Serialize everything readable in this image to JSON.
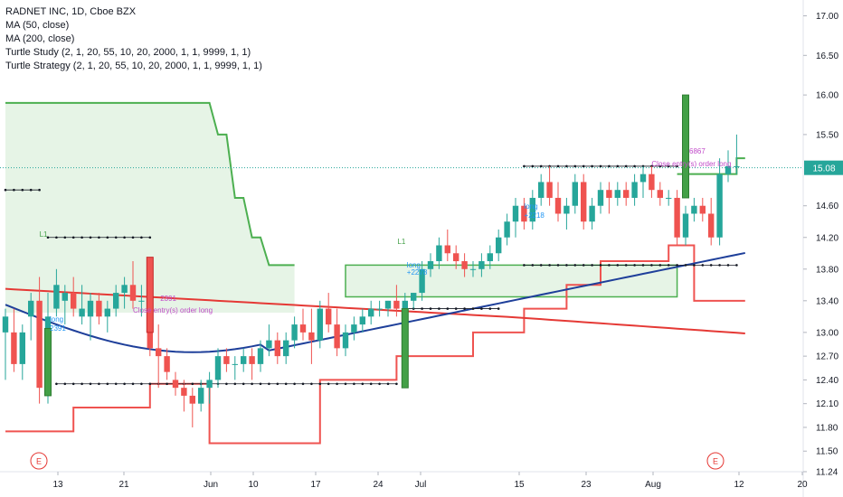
{
  "legend": {
    "title": "RADNET INC, 1D, Cboe BZX",
    "ma50": "MA (50, close)",
    "ma200": "MA (200, close)",
    "study": "Turtle Study (2, 1, 20, 55, 10, 20, 2000, 1, 1, 9999, 1, 1)",
    "strategy": "Turtle Strategy (2, 1, 20, 55, 10, 20, 2000, 1, 1, 9999, 1, 1)"
  },
  "colors": {
    "up": "#26a69a",
    "down": "#ef5350",
    "ma50": "#1e3f9a",
    "ma200": "#e53935",
    "green_channel": "#4caf50",
    "red_channel": "#ef5350",
    "price_line": "#26a69a",
    "signal_label": "#2196f3",
    "close_label": "#c04ac8"
  },
  "chart_data": {
    "type": "candlestick",
    "ylim": [
      11.24,
      17.2
    ],
    "y_ticks": [
      "17.00",
      "16.50",
      "16.00",
      "15.50",
      "15.08",
      "14.60",
      "14.20",
      "13.80",
      "13.40",
      "13.00",
      "12.70",
      "12.40",
      "12.10",
      "11.80",
      "11.50",
      "11.24"
    ],
    "x_ticks": [
      "13",
      "21",
      "Jun",
      "10",
      "17",
      "24",
      "Jul",
      "15",
      "23",
      "Aug",
      "12",
      "20"
    ],
    "last_price": "15.08",
    "candles": [
      {
        "o": 13.0,
        "h": 13.3,
        "l": 12.4,
        "c": 13.2
      },
      {
        "o": 13.0,
        "h": 13.3,
        "l": 12.5,
        "c": 12.6
      },
      {
        "o": 12.6,
        "h": 13.1,
        "l": 12.4,
        "c": 13.0
      },
      {
        "o": 13.2,
        "h": 13.5,
        "l": 12.9,
        "c": 13.4
      },
      {
        "o": 13.4,
        "h": 13.7,
        "l": 12.1,
        "c": 12.3
      },
      {
        "o": 12.5,
        "h": 13.5,
        "l": 12.1,
        "c": 13.2
      },
      {
        "o": 13.3,
        "h": 13.8,
        "l": 13.2,
        "c": 13.6
      },
      {
        "o": 13.4,
        "h": 13.6,
        "l": 13.1,
        "c": 13.5
      },
      {
        "o": 13.5,
        "h": 13.7,
        "l": 13.2,
        "c": 13.3
      },
      {
        "o": 13.2,
        "h": 13.6,
        "l": 13.1,
        "c": 13.3
      },
      {
        "o": 13.2,
        "h": 13.5,
        "l": 12.9,
        "c": 13.4
      },
      {
        "o": 13.4,
        "h": 13.5,
        "l": 13.1,
        "c": 13.2
      },
      {
        "o": 13.2,
        "h": 13.4,
        "l": 13.0,
        "c": 13.3
      },
      {
        "o": 13.3,
        "h": 13.6,
        "l": 13.2,
        "c": 13.5
      },
      {
        "o": 13.5,
        "h": 13.7,
        "l": 13.3,
        "c": 13.6
      },
      {
        "o": 13.6,
        "h": 13.9,
        "l": 13.3,
        "c": 13.4
      },
      {
        "o": 13.4,
        "h": 13.6,
        "l": 13.2,
        "c": 13.4
      },
      {
        "o": 13.4,
        "h": 13.5,
        "l": 12.7,
        "c": 12.8
      },
      {
        "o": 12.8,
        "h": 13.1,
        "l": 12.3,
        "c": 12.7
      },
      {
        "o": 12.7,
        "h": 12.8,
        "l": 12.4,
        "c": 12.5
      },
      {
        "o": 12.4,
        "h": 12.5,
        "l": 12.2,
        "c": 12.3
      },
      {
        "o": 12.3,
        "h": 12.4,
        "l": 12.0,
        "c": 12.2
      },
      {
        "o": 12.2,
        "h": 12.3,
        "l": 11.8,
        "c": 12.1
      },
      {
        "o": 12.1,
        "h": 12.4,
        "l": 12.0,
        "c": 12.3
      },
      {
        "o": 12.3,
        "h": 12.5,
        "l": 12.1,
        "c": 12.4
      },
      {
        "o": 12.4,
        "h": 12.8,
        "l": 12.3,
        "c": 12.7
      },
      {
        "o": 12.7,
        "h": 12.8,
        "l": 12.5,
        "c": 12.6
      },
      {
        "o": 12.6,
        "h": 12.7,
        "l": 12.4,
        "c": 12.6
      },
      {
        "o": 12.6,
        "h": 12.8,
        "l": 12.5,
        "c": 12.7
      },
      {
        "o": 12.7,
        "h": 12.8,
        "l": 12.4,
        "c": 12.6
      },
      {
        "o": 12.6,
        "h": 12.9,
        "l": 12.5,
        "c": 12.8
      },
      {
        "o": 12.8,
        "h": 13.1,
        "l": 12.7,
        "c": 12.9
      },
      {
        "o": 12.9,
        "h": 13.0,
        "l": 12.6,
        "c": 12.7
      },
      {
        "o": 12.7,
        "h": 13.0,
        "l": 12.6,
        "c": 12.9
      },
      {
        "o": 12.9,
        "h": 13.2,
        "l": 12.8,
        "c": 13.1
      },
      {
        "o": 13.1,
        "h": 13.3,
        "l": 12.9,
        "c": 13.0
      },
      {
        "o": 13.0,
        "h": 13.3,
        "l": 12.6,
        "c": 12.9
      },
      {
        "o": 12.9,
        "h": 13.4,
        "l": 12.8,
        "c": 13.3
      },
      {
        "o": 13.3,
        "h": 13.5,
        "l": 13.0,
        "c": 13.1
      },
      {
        "o": 13.1,
        "h": 13.3,
        "l": 12.7,
        "c": 12.8
      },
      {
        "o": 12.8,
        "h": 13.1,
        "l": 12.7,
        "c": 13.0
      },
      {
        "o": 13.0,
        "h": 13.2,
        "l": 12.9,
        "c": 13.1
      },
      {
        "o": 13.1,
        "h": 13.3,
        "l": 13.0,
        "c": 13.2
      },
      {
        "o": 13.2,
        "h": 13.4,
        "l": 13.1,
        "c": 13.3
      },
      {
        "o": 13.3,
        "h": 13.4,
        "l": 13.2,
        "c": 13.3
      },
      {
        "o": 13.3,
        "h": 13.4,
        "l": 13.2,
        "c": 13.4
      },
      {
        "o": 13.4,
        "h": 13.6,
        "l": 13.2,
        "c": 13.3
      },
      {
        "o": 13.3,
        "h": 13.5,
        "l": 13.2,
        "c": 13.4
      },
      {
        "o": 13.4,
        "h": 13.5,
        "l": 13.3,
        "c": 13.5
      },
      {
        "o": 13.5,
        "h": 13.9,
        "l": 13.4,
        "c": 13.8
      },
      {
        "o": 13.8,
        "h": 14.0,
        "l": 13.7,
        "c": 13.9
      },
      {
        "o": 13.9,
        "h": 14.2,
        "l": 13.8,
        "c": 14.1
      },
      {
        "o": 14.1,
        "h": 14.3,
        "l": 13.9,
        "c": 14.0
      },
      {
        "o": 14.0,
        "h": 14.1,
        "l": 13.8,
        "c": 13.9
      },
      {
        "o": 13.9,
        "h": 14.0,
        "l": 13.7,
        "c": 13.8
      },
      {
        "o": 13.8,
        "h": 13.9,
        "l": 13.7,
        "c": 13.8
      },
      {
        "o": 13.8,
        "h": 14.0,
        "l": 13.7,
        "c": 13.9
      },
      {
        "o": 13.9,
        "h": 14.1,
        "l": 13.8,
        "c": 14.0
      },
      {
        "o": 14.0,
        "h": 14.3,
        "l": 13.9,
        "c": 14.2
      },
      {
        "o": 14.2,
        "h": 14.5,
        "l": 14.1,
        "c": 14.4
      },
      {
        "o": 14.4,
        "h": 14.7,
        "l": 14.2,
        "c": 14.6
      },
      {
        "o": 14.6,
        "h": 14.7,
        "l": 14.3,
        "c": 14.4
      },
      {
        "o": 14.4,
        "h": 14.8,
        "l": 14.3,
        "c": 14.7
      },
      {
        "o": 14.7,
        "h": 15.0,
        "l": 14.6,
        "c": 14.9
      },
      {
        "o": 14.9,
        "h": 15.1,
        "l": 14.6,
        "c": 14.7
      },
      {
        "o": 14.7,
        "h": 14.9,
        "l": 14.4,
        "c": 14.5
      },
      {
        "o": 14.5,
        "h": 14.7,
        "l": 14.3,
        "c": 14.6
      },
      {
        "o": 14.6,
        "h": 15.0,
        "l": 14.5,
        "c": 14.9
      },
      {
        "o": 14.9,
        "h": 15.0,
        "l": 14.3,
        "c": 14.4
      },
      {
        "o": 14.4,
        "h": 14.7,
        "l": 14.3,
        "c": 14.6
      },
      {
        "o": 14.6,
        "h": 14.9,
        "l": 14.5,
        "c": 14.8
      },
      {
        "o": 14.8,
        "h": 14.9,
        "l": 14.5,
        "c": 14.7
      },
      {
        "o": 14.7,
        "h": 14.9,
        "l": 14.6,
        "c": 14.8
      },
      {
        "o": 14.8,
        "h": 14.9,
        "l": 14.6,
        "c": 14.7
      },
      {
        "o": 14.7,
        "h": 15.0,
        "l": 14.6,
        "c": 14.9
      },
      {
        "o": 14.9,
        "h": 15.1,
        "l": 14.7,
        "c": 15.0
      },
      {
        "o": 15.0,
        "h": 15.1,
        "l": 14.7,
        "c": 14.8
      },
      {
        "o": 14.8,
        "h": 14.9,
        "l": 14.6,
        "c": 14.7
      },
      {
        "o": 14.7,
        "h": 14.8,
        "l": 14.6,
        "c": 14.7
      },
      {
        "o": 14.7,
        "h": 14.8,
        "l": 14.1,
        "c": 14.2
      },
      {
        "o": 14.2,
        "h": 14.6,
        "l": 14.1,
        "c": 14.5
      },
      {
        "o": 14.5,
        "h": 14.7,
        "l": 14.4,
        "c": 14.6
      },
      {
        "o": 14.6,
        "h": 14.7,
        "l": 14.4,
        "c": 14.5
      },
      {
        "o": 14.5,
        "h": 14.7,
        "l": 14.1,
        "c": 14.2
      },
      {
        "o": 14.2,
        "h": 15.2,
        "l": 14.1,
        "c": 15.0
      },
      {
        "o": 15.0,
        "h": 15.3,
        "l": 14.9,
        "c": 15.1
      },
      {
        "o": 15.1,
        "h": 15.5,
        "l": 15.0,
        "c": 15.1
      }
    ]
  },
  "markers": {
    "earnings": "E",
    "l1": "L1",
    "long_labels": [
      "long",
      "2391",
      "long",
      "+2278",
      "long",
      "+2218"
    ],
    "close_labels": [
      "2391",
      "Close entry(s) order long",
      "6867",
      "Close entry(s) order long"
    ]
  }
}
